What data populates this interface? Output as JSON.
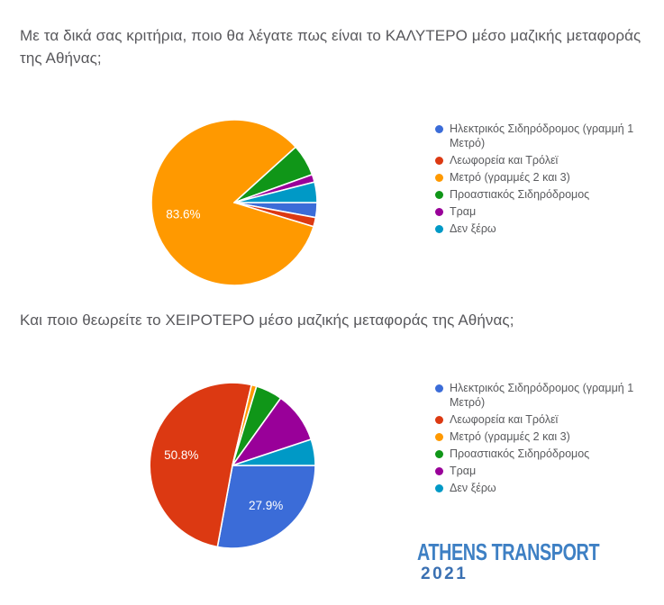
{
  "theme": {
    "background": "#FFFFFF",
    "title_color": "#58585C",
    "legend_text_color": "#5A5B5E",
    "pie_label_color": "#FFFFFF"
  },
  "chart_data": [
    {
      "type": "pie",
      "title": "Με τα δικά σας κριτήρια, ποιο θα λέγατε πως είναι το ΚΑΛΥΤΕΡΟ μέσο μαζικής μεταφοράς της Αθήνας;",
      "title_lines": [
        "Με τα δικά σας κριτήρια, ποιο θα λέγατε πως είναι το ΚΑΛΥΤΕΡΟ μέσο μαζικής μεταφοράς",
        "της Αθήνας;"
      ],
      "categories": [
        "Ηλεκτρικός Σιδηρόδρομος (γραμμή 1 Μετρό)",
        "Λεωφορεία και Τρόλεϊ",
        "Μετρό (γραμμές 2 και 3)",
        "Προαστιακός Σιδηρόδρομος",
        "Τραμ",
        "Δεν ξέρω"
      ],
      "values": [
        2.9,
        1.8,
        83.6,
        6.2,
        1.5,
        4.0
      ],
      "data_labels": [
        "",
        "",
        "83.6%",
        "",
        "",
        ""
      ],
      "colors": [
        "#3B6CD8",
        "#DC3912",
        "#FF9900",
        "#109618",
        "#990099",
        "#0099C6"
      ],
      "start_angle_deg": 90,
      "direction": "clockwise",
      "legend_position": "right"
    },
    {
      "type": "pie",
      "title": "Και ποιο θεωρείτε το ΧΕΙΡΟΤΕΡΟ μέσο μαζικής μεταφοράς της Αθήνας;",
      "title_lines": [
        "Και ποιο θεωρείτε το ΧΕΙΡΟΤΕΡΟ μέσο μαζικής μεταφοράς της Αθήνας;"
      ],
      "categories": [
        "Ηλεκτρικός Σιδηρόδρομος (γραμμή 1 Μετρό)",
        "Λεωφορεία και Τρόλεϊ",
        "Μετρό (γραμμές 2 και 3)",
        "Προαστιακός Σιδηρόδρομος",
        "Τραμ",
        "Δεν ξέρω"
      ],
      "values": [
        27.9,
        50.8,
        1.0,
        5.2,
        10.0,
        5.1
      ],
      "data_labels": [
        "27.9%",
        "50.8%",
        "",
        "",
        "",
        ""
      ],
      "colors": [
        "#3B6CD8",
        "#DC3912",
        "#FF9900",
        "#109618",
        "#990099",
        "#0099C6"
      ],
      "start_angle_deg": 90,
      "direction": "clockwise",
      "legend_position": "right"
    }
  ],
  "logo": {
    "line1": "ATHENS TRANSPORT",
    "line2": "2021",
    "color_line1": "#3E80C4",
    "color_line2": "#3A70B2"
  }
}
